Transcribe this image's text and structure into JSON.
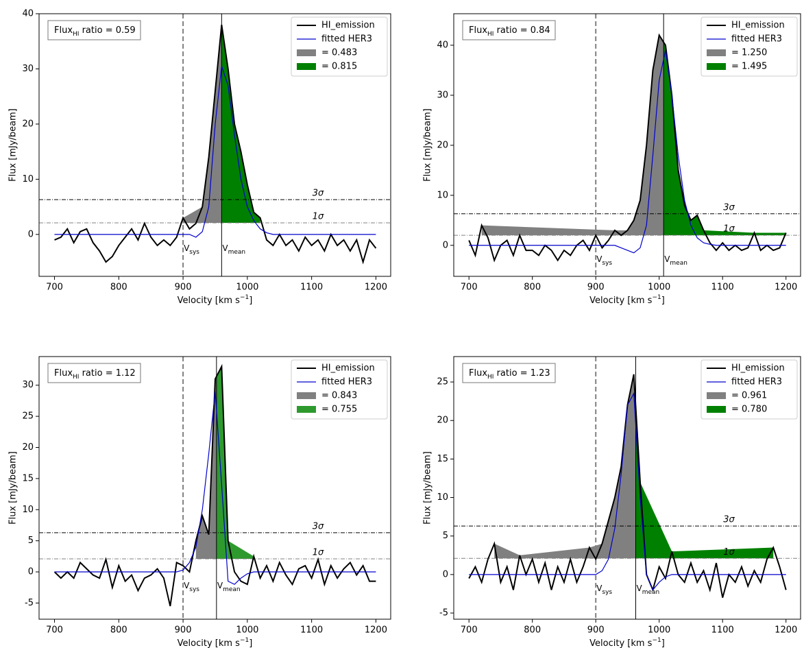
{
  "chart_data": [
    {
      "type": "line",
      "annotation": [
        "Flux",
        "HI",
        " ratio = 0.59"
      ],
      "xlabel": [
        "Velocity [km s",
        "−1",
        "]"
      ],
      "ylabel": "Flux [mJy/beam]",
      "x": [
        700,
        710,
        720,
        730,
        740,
        750,
        760,
        770,
        780,
        790,
        800,
        810,
        820,
        830,
        840,
        850,
        860,
        870,
        880,
        890,
        900,
        910,
        920,
        930,
        940,
        950,
        960,
        970,
        980,
        990,
        1000,
        1010,
        1020,
        1030,
        1040,
        1050,
        1060,
        1070,
        1080,
        1090,
        1100,
        1110,
        1120,
        1130,
        1140,
        1150,
        1160,
        1170,
        1180,
        1190,
        1200
      ],
      "series": [
        {
          "name": "HI_emission",
          "color": "#000000",
          "values": [
            -1,
            -0.5,
            1,
            -1.5,
            0.5,
            1,
            -1.5,
            -3,
            -5,
            -4,
            -2,
            -0.5,
            1,
            -1,
            2,
            -0.5,
            -2,
            -1,
            -2,
            -0.5,
            3,
            1,
            2,
            5,
            14,
            26,
            38,
            30,
            20,
            15,
            9,
            4,
            3,
            -1,
            -2,
            0,
            -2,
            -1,
            -3,
            -0.5,
            -2,
            -1,
            -3,
            0,
            -2,
            -1,
            -3,
            -1,
            -5,
            -1,
            -2.5
          ]
        },
        {
          "name": "fitted HER3",
          "color": "#0000cc",
          "values": [
            0,
            0,
            0,
            0,
            0,
            0,
            0,
            0,
            0,
            0,
            0,
            0,
            0,
            0,
            0,
            0,
            0,
            0,
            0,
            0,
            0,
            0,
            -0.5,
            0.5,
            5,
            20,
            30.5,
            27,
            18,
            10,
            5,
            2.5,
            1,
            0.3,
            0,
            0,
            0,
            0,
            0,
            0,
            0,
            0,
            0,
            0,
            0,
            0,
            0,
            0,
            0,
            0,
            0
          ]
        }
      ],
      "fills": [
        {
          "name": "= 0.483",
          "color": "#808080"
        },
        {
          "name": "= 0.815",
          "color": "#008000"
        }
      ],
      "vlines": [
        {
          "label": [
            "V",
            "sys"
          ],
          "value": 900,
          "color": "#808080",
          "dashed": true
        },
        {
          "label": [
            "V",
            "mean"
          ],
          "value": 960,
          "color": "#000000",
          "dashed": false
        }
      ],
      "hlines": [
        {
          "label": "3σ",
          "value": 6.3,
          "color": "#000000"
        },
        {
          "label": "1σ",
          "value": 2.1,
          "color": "#808080"
        }
      ],
      "xlim": [
        676,
        1223
      ],
      "xticks": [
        700,
        800,
        900,
        1000,
        1100,
        1200
      ],
      "ylim": [
        -7.6,
        40
      ],
      "yticks": [
        0,
        10,
        20,
        30,
        40
      ],
      "legend": "upper right"
    },
    {
      "type": "line",
      "annotation": [
        "Flux",
        "HI",
        " ratio = 0.84"
      ],
      "xlabel": [
        "Velocity [km s",
        "−1",
        "]"
      ],
      "ylabel": "Flux [mJy/beam]",
      "x": [
        700,
        710,
        720,
        730,
        740,
        750,
        760,
        770,
        780,
        790,
        800,
        810,
        820,
        830,
        840,
        850,
        860,
        870,
        880,
        890,
        900,
        910,
        920,
        930,
        940,
        950,
        960,
        970,
        980,
        990,
        1000,
        1010,
        1020,
        1030,
        1040,
        1050,
        1060,
        1070,
        1080,
        1090,
        1100,
        1110,
        1120,
        1130,
        1140,
        1150,
        1160,
        1170,
        1180,
        1190,
        1200
      ],
      "series": [
        {
          "name": "HI_emission",
          "color": "#000000",
          "values": [
            1,
            -2,
            4,
            1.5,
            -3,
            0,
            1,
            -2,
            2,
            -1,
            -1,
            -2,
            0,
            -1,
            -3,
            -1,
            -2,
            0,
            1,
            -1,
            2,
            -0.5,
            1,
            3,
            2,
            3,
            5,
            9,
            20,
            35,
            42,
            40,
            30,
            15,
            8,
            5,
            6,
            3,
            0.5,
            -1,
            0.5,
            -1,
            0,
            -1,
            -0.5,
            2.5,
            -1,
            0,
            -1,
            -0.5,
            2.5
          ]
        },
        {
          "name": "fitted HER3",
          "color": "#0000cc",
          "values": [
            0,
            0,
            0,
            0,
            0,
            0,
            0,
            0,
            0,
            0,
            0,
            0,
            0,
            0,
            0,
            0,
            0,
            0,
            0,
            0,
            0,
            0,
            0,
            0,
            -0.5,
            -1,
            -1.5,
            -0.5,
            4,
            18,
            33,
            39,
            30,
            18,
            9,
            4,
            1.5,
            0.5,
            0.2,
            0,
            0,
            0,
            0,
            0,
            0,
            0,
            0,
            0,
            0,
            0,
            0
          ]
        }
      ],
      "fills": [
        {
          "name": "= 1.250",
          "color": "#808080"
        },
        {
          "name": "= 1.495",
          "color": "#008000"
        }
      ],
      "vlines": [
        {
          "label": [
            "V",
            "sys"
          ],
          "value": 900,
          "color": "#808080",
          "dashed": true
        },
        {
          "label": [
            "V",
            "mean"
          ],
          "value": 1007,
          "color": "#000000",
          "dashed": false
        }
      ],
      "hlines": [
        {
          "label": "3σ",
          "value": 6.3,
          "color": "#000000"
        },
        {
          "label": "1σ",
          "value": 2,
          "color": "#808080"
        }
      ],
      "xlim": [
        676,
        1223
      ],
      "xticks": [
        700,
        800,
        900,
        1000,
        1100,
        1200
      ],
      "ylim": [
        -6.2,
        46.3
      ],
      "yticks": [
        0,
        10,
        20,
        30,
        40
      ],
      "legend": "upper right"
    },
    {
      "type": "line",
      "annotation": [
        "Flux",
        "HI",
        " ratio = 1.12"
      ],
      "xlabel": [
        "Velocity [km s",
        "−1",
        "]"
      ],
      "ylabel": "Flux [mJy/beam]",
      "x": [
        700,
        710,
        720,
        730,
        740,
        750,
        760,
        770,
        780,
        790,
        800,
        810,
        820,
        830,
        840,
        850,
        860,
        870,
        880,
        890,
        900,
        910,
        920,
        930,
        940,
        950,
        960,
        970,
        980,
        990,
        1000,
        1010,
        1020,
        1030,
        1040,
        1050,
        1060,
        1070,
        1080,
        1090,
        1100,
        1110,
        1120,
        1130,
        1140,
        1150,
        1160,
        1170,
        1180,
        1190,
        1200
      ],
      "series": [
        {
          "name": "HI_emission",
          "color": "#000000",
          "values": [
            0,
            -1,
            0,
            -1,
            1.5,
            0.5,
            -0.5,
            -1,
            2,
            -2.5,
            1,
            -1.5,
            -0.5,
            -3,
            -1,
            -0.5,
            0.5,
            -1,
            -5.5,
            1.5,
            1,
            0,
            5,
            9,
            6,
            31,
            33,
            5,
            0,
            -1.5,
            -2,
            2.5,
            -1,
            1,
            -1.5,
            1.5,
            -0.5,
            -2,
            0.5,
            1,
            -1,
            2,
            -2,
            1,
            -1,
            0.5,
            1.5,
            -0.5,
            1,
            -1.5,
            -1.5
          ]
        },
        {
          "name": "fitted HER3",
          "color": "#0000cc",
          "values": [
            0,
            0,
            0,
            0,
            0,
            0,
            0,
            0,
            0,
            0,
            0,
            0,
            0,
            0,
            0,
            0,
            0,
            0,
            0,
            0,
            0.3,
            1.5,
            4,
            10,
            19,
            29,
            14,
            -1.5,
            -2,
            -1,
            -0.3,
            0,
            0,
            0,
            0,
            0,
            0,
            0,
            0,
            0,
            0,
            0,
            0,
            0,
            0,
            0,
            0,
            0,
            0,
            0,
            0
          ]
        }
      ],
      "fills": [
        {
          "name": "= 0.843",
          "color": "#808080"
        },
        {
          "name": "= 0.755",
          "color": "#2e9a2e"
        }
      ],
      "vlines": [
        {
          "label": [
            "V",
            "sys"
          ],
          "value": 900,
          "color": "#808080",
          "dashed": true
        },
        {
          "label": [
            "V",
            "mean"
          ],
          "value": 952,
          "color": "#000000",
          "dashed": false
        }
      ],
      "hlines": [
        {
          "label": "3σ",
          "value": 6.3,
          "color": "#000000"
        },
        {
          "label": "1σ",
          "value": 2.1,
          "color": "#808080"
        }
      ],
      "xlim": [
        676,
        1223
      ],
      "xticks": [
        700,
        800,
        900,
        1000,
        1100,
        1200
      ],
      "ylim": [
        -7.6,
        34.6
      ],
      "yticks": [
        -5,
        0,
        5,
        10,
        15,
        20,
        25,
        30
      ],
      "legend": "upper right"
    },
    {
      "type": "line",
      "annotation": [
        "Flux",
        "HI",
        " ratio = 1.23"
      ],
      "xlabel": [
        "Velocity [km s",
        "−1",
        "]"
      ],
      "ylabel": "Flux [mJy/beam]",
      "x": [
        700,
        710,
        720,
        730,
        740,
        750,
        760,
        770,
        780,
        790,
        800,
        810,
        820,
        830,
        840,
        850,
        860,
        870,
        880,
        890,
        900,
        910,
        920,
        930,
        940,
        950,
        960,
        970,
        980,
        990,
        1000,
        1010,
        1020,
        1030,
        1040,
        1050,
        1060,
        1070,
        1080,
        1090,
        1100,
        1110,
        1120,
        1130,
        1140,
        1150,
        1160,
        1170,
        1180,
        1190,
        1200
      ],
      "series": [
        {
          "name": "HI_emission",
          "color": "#000000",
          "values": [
            -0.5,
            1,
            -1,
            2,
            4,
            -1,
            1,
            -2,
            2.5,
            0,
            2,
            -1,
            1.5,
            -2,
            1,
            -1,
            2,
            -1,
            1,
            3.5,
            2,
            4,
            7,
            10,
            14,
            22,
            26,
            12,
            0,
            -2,
            1,
            -0.5,
            3,
            0,
            -1,
            1.5,
            -1,
            0.5,
            -2,
            1.5,
            -3,
            0,
            -1,
            1,
            -1.5,
            0.5,
            -1,
            2,
            3.5,
            1,
            -2
          ]
        },
        {
          "name": "fitted HER3",
          "color": "#0000cc",
          "values": [
            0,
            0,
            0,
            0,
            0,
            0,
            0,
            0,
            0,
            0,
            0,
            0,
            0,
            0,
            0,
            0,
            0,
            0,
            0,
            0,
            0,
            0.5,
            2,
            6,
            13,
            22,
            23.5,
            10,
            0,
            -2,
            -1,
            -0.3,
            0,
            0,
            0,
            0,
            0,
            0,
            0,
            0,
            0,
            0,
            0,
            0,
            0,
            0,
            0,
            0,
            0,
            0,
            0
          ]
        }
      ],
      "fills": [
        {
          "name": "= 0.961",
          "color": "#808080"
        },
        {
          "name": "= 0.780",
          "color": "#008000"
        }
      ],
      "vlines": [
        {
          "label": [
            "V",
            "sys"
          ],
          "value": 900,
          "color": "#808080",
          "dashed": true
        },
        {
          "label": [
            "V",
            "mean"
          ],
          "value": 963,
          "color": "#000000",
          "dashed": false
        }
      ],
      "hlines": [
        {
          "label": "3σ",
          "value": 6.3,
          "color": "#000000"
        },
        {
          "label": "1σ",
          "value": 2.1,
          "color": "#808080"
        }
      ],
      "xlim": [
        676,
        1223
      ],
      "xticks": [
        700,
        800,
        900,
        1000,
        1100,
        1200
      ],
      "ylim": [
        -5.8,
        28.3
      ],
      "yticks": [
        -5,
        0,
        5,
        10,
        15,
        20,
        25
      ],
      "legend": "upper right"
    }
  ]
}
